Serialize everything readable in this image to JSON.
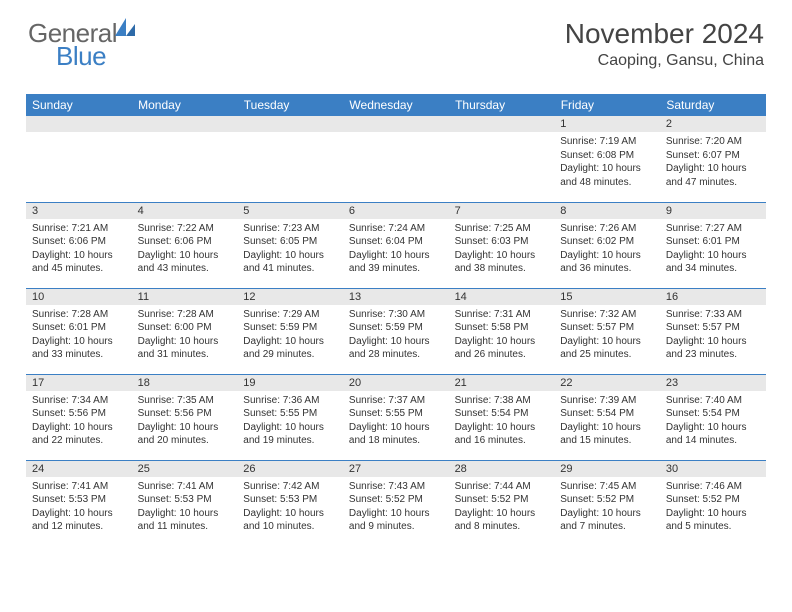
{
  "branding": {
    "logo_general": "General",
    "logo_blue": "Blue"
  },
  "header": {
    "month_year": "November 2024",
    "location": "Caoping, Gansu, China"
  },
  "colors": {
    "header_bar": "#3b7fc4",
    "daynum_bg": "#e8e8e8",
    "row_divider": "#3b7fc4",
    "text": "#333333",
    "background": "#ffffff"
  },
  "weekdays": [
    "Sunday",
    "Monday",
    "Tuesday",
    "Wednesday",
    "Thursday",
    "Friday",
    "Saturday"
  ],
  "first_weekday_index": 5,
  "days": [
    {
      "n": 1,
      "sunrise": "7:19 AM",
      "sunset": "6:08 PM",
      "daylight": "10 hours and 48 minutes."
    },
    {
      "n": 2,
      "sunrise": "7:20 AM",
      "sunset": "6:07 PM",
      "daylight": "10 hours and 47 minutes."
    },
    {
      "n": 3,
      "sunrise": "7:21 AM",
      "sunset": "6:06 PM",
      "daylight": "10 hours and 45 minutes."
    },
    {
      "n": 4,
      "sunrise": "7:22 AM",
      "sunset": "6:06 PM",
      "daylight": "10 hours and 43 minutes."
    },
    {
      "n": 5,
      "sunrise": "7:23 AM",
      "sunset": "6:05 PM",
      "daylight": "10 hours and 41 minutes."
    },
    {
      "n": 6,
      "sunrise": "7:24 AM",
      "sunset": "6:04 PM",
      "daylight": "10 hours and 39 minutes."
    },
    {
      "n": 7,
      "sunrise": "7:25 AM",
      "sunset": "6:03 PM",
      "daylight": "10 hours and 38 minutes."
    },
    {
      "n": 8,
      "sunrise": "7:26 AM",
      "sunset": "6:02 PM",
      "daylight": "10 hours and 36 minutes."
    },
    {
      "n": 9,
      "sunrise": "7:27 AM",
      "sunset": "6:01 PM",
      "daylight": "10 hours and 34 minutes."
    },
    {
      "n": 10,
      "sunrise": "7:28 AM",
      "sunset": "6:01 PM",
      "daylight": "10 hours and 33 minutes."
    },
    {
      "n": 11,
      "sunrise": "7:28 AM",
      "sunset": "6:00 PM",
      "daylight": "10 hours and 31 minutes."
    },
    {
      "n": 12,
      "sunrise": "7:29 AM",
      "sunset": "5:59 PM",
      "daylight": "10 hours and 29 minutes."
    },
    {
      "n": 13,
      "sunrise": "7:30 AM",
      "sunset": "5:59 PM",
      "daylight": "10 hours and 28 minutes."
    },
    {
      "n": 14,
      "sunrise": "7:31 AM",
      "sunset": "5:58 PM",
      "daylight": "10 hours and 26 minutes."
    },
    {
      "n": 15,
      "sunrise": "7:32 AM",
      "sunset": "5:57 PM",
      "daylight": "10 hours and 25 minutes."
    },
    {
      "n": 16,
      "sunrise": "7:33 AM",
      "sunset": "5:57 PM",
      "daylight": "10 hours and 23 minutes."
    },
    {
      "n": 17,
      "sunrise": "7:34 AM",
      "sunset": "5:56 PM",
      "daylight": "10 hours and 22 minutes."
    },
    {
      "n": 18,
      "sunrise": "7:35 AM",
      "sunset": "5:56 PM",
      "daylight": "10 hours and 20 minutes."
    },
    {
      "n": 19,
      "sunrise": "7:36 AM",
      "sunset": "5:55 PM",
      "daylight": "10 hours and 19 minutes."
    },
    {
      "n": 20,
      "sunrise": "7:37 AM",
      "sunset": "5:55 PM",
      "daylight": "10 hours and 18 minutes."
    },
    {
      "n": 21,
      "sunrise": "7:38 AM",
      "sunset": "5:54 PM",
      "daylight": "10 hours and 16 minutes."
    },
    {
      "n": 22,
      "sunrise": "7:39 AM",
      "sunset": "5:54 PM",
      "daylight": "10 hours and 15 minutes."
    },
    {
      "n": 23,
      "sunrise": "7:40 AM",
      "sunset": "5:54 PM",
      "daylight": "10 hours and 14 minutes."
    },
    {
      "n": 24,
      "sunrise": "7:41 AM",
      "sunset": "5:53 PM",
      "daylight": "10 hours and 12 minutes."
    },
    {
      "n": 25,
      "sunrise": "7:41 AM",
      "sunset": "5:53 PM",
      "daylight": "10 hours and 11 minutes."
    },
    {
      "n": 26,
      "sunrise": "7:42 AM",
      "sunset": "5:53 PM",
      "daylight": "10 hours and 10 minutes."
    },
    {
      "n": 27,
      "sunrise": "7:43 AM",
      "sunset": "5:52 PM",
      "daylight": "10 hours and 9 minutes."
    },
    {
      "n": 28,
      "sunrise": "7:44 AM",
      "sunset": "5:52 PM",
      "daylight": "10 hours and 8 minutes."
    },
    {
      "n": 29,
      "sunrise": "7:45 AM",
      "sunset": "5:52 PM",
      "daylight": "10 hours and 7 minutes."
    },
    {
      "n": 30,
      "sunrise": "7:46 AM",
      "sunset": "5:52 PM",
      "daylight": "10 hours and 5 minutes."
    }
  ],
  "labels": {
    "sunrise_prefix": "Sunrise: ",
    "sunset_prefix": "Sunset: ",
    "daylight_prefix": "Daylight: "
  }
}
